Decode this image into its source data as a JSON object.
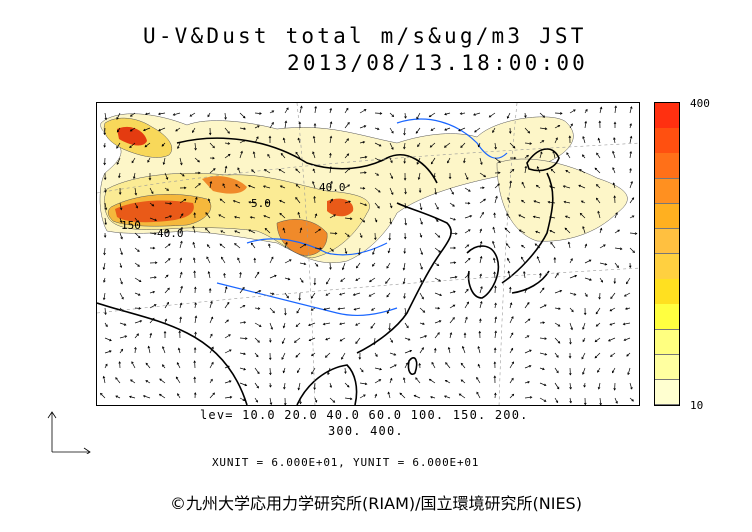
{
  "title": {
    "line1": "U-V&Dust total m/s&ug/m3 JST",
    "line2": "2013/08/13.18:00:00"
  },
  "colorbar": {
    "max_label": "400",
    "min_label": "10",
    "colors": [
      "#ffffd0",
      "#ffffa0",
      "#ffff80",
      "#ffff40",
      "#ffe020",
      "#ffd040",
      "#ffc040",
      "#ffb020",
      "#ff9020",
      "#ff7018",
      "#ff5010",
      "#ff3010"
    ]
  },
  "map": {
    "contour_labels": [
      "40.0",
      "150",
      "40.0",
      "5.0"
    ],
    "dust_colors": [
      "#fdf6c8",
      "#fbeb94",
      "#f8d85a",
      "#f5b83c",
      "#f08a2a",
      "#e95a18",
      "#e43b10"
    ]
  },
  "levels": {
    "line1": "lev= 10.0 20.0 40.0 60.0 100. 150. 200.",
    "line2": "300. 400."
  },
  "units": "XUNIT = 6.000E+01, YUNIT = 6.000E+01",
  "copyright": "©九州大学応用力学研究所(RIAM)/国立環境研究所(NIES)"
}
